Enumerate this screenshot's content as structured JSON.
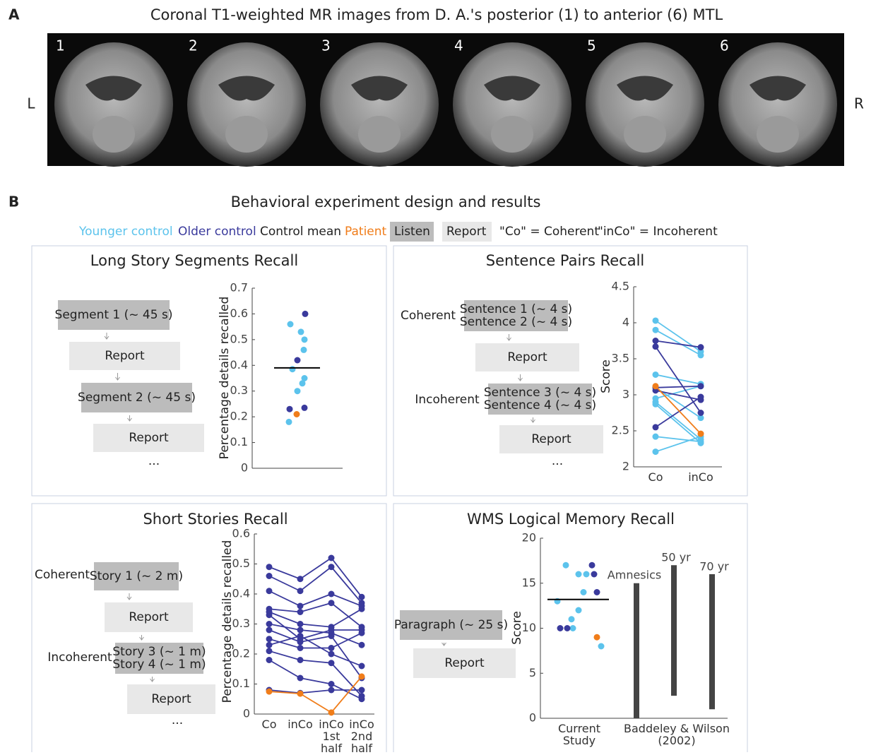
{
  "panel_a": {
    "label": "A",
    "title": "Coronal T1-weighted MR images from D. A.'s posterior (1) to anterior (6) MTL",
    "slices": [
      "1",
      "2",
      "3",
      "4",
      "5",
      "6"
    ],
    "left": "L",
    "right": "R"
  },
  "panel_b": {
    "label": "B",
    "title": "Behavioral experiment design and results",
    "legend": [
      {
        "text": "Younger control",
        "color": "#5cc3ec"
      },
      {
        "text": "Older control",
        "color": "#3a3a9c"
      },
      {
        "text": "Control mean",
        "color": "#222222"
      },
      {
        "text": "Patient",
        "color": "#f07d1a"
      },
      {
        "text": "Listen",
        "color": "#222222",
        "fill": "#bcbcbc"
      },
      {
        "text": "Report",
        "color": "#222222",
        "fill": "#e8e8e8"
      },
      {
        "text": "\"Co\" = Coherent",
        "color": "#222222"
      },
      {
        "text": "\"inCo\" = Incoherent",
        "color": "#222222"
      }
    ]
  },
  "designs": [
    {
      "steps": [
        {
          "type": "listen",
          "lines": [
            "Segment 1 (~ 45 s)"
          ]
        },
        {
          "type": "report",
          "lines": [
            "Report"
          ]
        },
        {
          "type": "listen",
          "lines": [
            "Segment 2 (~ 45 s)"
          ]
        },
        {
          "type": "report",
          "lines": [
            "Report"
          ]
        }
      ],
      "more": "..."
    },
    {
      "steps": [
        {
          "type": "listen",
          "label": "Coherent",
          "lines": [
            "Sentence 1 (~ 4 s)",
            "Sentence 2 (~ 4 s)"
          ]
        },
        {
          "type": "report",
          "lines": [
            "Report"
          ]
        },
        {
          "type": "listen",
          "label": "Incoherent",
          "lines": [
            "Sentence 3 (~ 4 s)",
            "Sentence 4 (~ 4 s)"
          ]
        },
        {
          "type": "report",
          "lines": [
            "Report"
          ]
        }
      ],
      "more": "..."
    },
    {
      "steps": [
        {
          "type": "listen",
          "label": "Coherent",
          "lines": [
            "Story 1 (~ 2 m)"
          ]
        },
        {
          "type": "report",
          "lines": [
            "Report"
          ]
        },
        {
          "type": "listen",
          "label": "Incoherent",
          "lines": [
            "Story 3 (~ 1 m)",
            "Story 4 (~ 1 m)"
          ]
        },
        {
          "type": "report",
          "lines": [
            "Report"
          ]
        }
      ],
      "more": "..."
    },
    {
      "steps": [
        {
          "type": "listen",
          "lines": [
            "Paragraph (~ 25 s)"
          ]
        },
        {
          "type": "report",
          "lines": [
            "Report"
          ]
        }
      ]
    }
  ],
  "chart_data": [
    {
      "type": "strip",
      "title": "Long Story Segments Recall",
      "y_label": "Percentage details recalled",
      "ylim": [
        0,
        0.7
      ],
      "yticks": [
        0,
        0.1,
        0.2,
        0.3,
        0.4,
        0.5,
        0.6,
        0.7
      ],
      "series": [
        {
          "color": "#5cc3ec",
          "values": [
            0.56,
            0.53,
            0.5,
            0.46,
            0.385,
            0.35,
            0.33,
            0.3,
            0.18
          ]
        },
        {
          "color": "#3a3a9c",
          "values": [
            0.6,
            0.42,
            0.23,
            0.235
          ]
        },
        {
          "color": "#f07d1a",
          "values": [
            0.21
          ]
        }
      ],
      "mean": 0.39,
      "mean_color": "#000000"
    },
    {
      "type": "paired",
      "title": "Sentence Pairs Recall",
      "y_label": "Score",
      "categories": [
        "Co",
        "inCo"
      ],
      "ylim": [
        2,
        4.5
      ],
      "yticks": [
        2,
        2.5,
        3,
        3.5,
        4,
        4.5
      ],
      "series": [
        {
          "color": "#5cc3ec",
          "values": [
            4.03,
            3.6
          ]
        },
        {
          "color": "#5cc3ec",
          "values": [
            3.9,
            3.55
          ]
        },
        {
          "color": "#5cc3ec",
          "values": [
            3.28,
            3.15
          ]
        },
        {
          "color": "#5cc3ec",
          "values": [
            3.1,
            2.68
          ]
        },
        {
          "color": "#5cc3ec",
          "values": [
            2.95,
            3.12
          ]
        },
        {
          "color": "#5cc3ec",
          "values": [
            2.9,
            2.38
          ]
        },
        {
          "color": "#5cc3ec",
          "values": [
            2.87,
            2.33
          ]
        },
        {
          "color": "#5cc3ec",
          "values": [
            2.42,
            2.35
          ]
        },
        {
          "color": "#5cc3ec",
          "values": [
            2.21,
            2.42
          ]
        },
        {
          "color": "#3a3a9c",
          "values": [
            3.75,
            3.66
          ]
        },
        {
          "color": "#3a3a9c",
          "values": [
            3.67,
            2.75
          ]
        },
        {
          "color": "#3a3a9c",
          "values": [
            3.1,
            3.12
          ]
        },
        {
          "color": "#3a3a9c",
          "values": [
            2.55,
            2.97
          ]
        },
        {
          "color": "#3a3a9c",
          "values": [
            3.06,
            2.93
          ]
        },
        {
          "color": "#f07d1a",
          "values": [
            3.12,
            2.46
          ]
        }
      ]
    },
    {
      "type": "paired",
      "title": "Short Stories Recall",
      "y_label": "Percentage details recalled",
      "categories": [
        "Co",
        "inCo",
        "inCo 1st half",
        "inCo 2nd half"
      ],
      "ylim": [
        0,
        0.6
      ],
      "yticks": [
        0,
        0.1,
        0.2,
        0.3,
        0.4,
        0.5,
        0.6
      ],
      "series": [
        {
          "color": "#3a3a9c",
          "values": [
            0.49,
            0.45,
            0.52,
            0.39
          ]
        },
        {
          "color": "#3a3a9c",
          "values": [
            0.46,
            0.41,
            0.49,
            0.37
          ]
        },
        {
          "color": "#3a3a9c",
          "values": [
            0.41,
            0.36,
            0.4,
            0.36
          ]
        },
        {
          "color": "#3a3a9c",
          "values": [
            0.35,
            0.34,
            0.37,
            0.29
          ]
        },
        {
          "color": "#3a3a9c",
          "values": [
            0.34,
            0.3,
            0.29,
            0.35
          ]
        },
        {
          "color": "#3a3a9c",
          "values": [
            0.33,
            0.25,
            0.28,
            0.28
          ]
        },
        {
          "color": "#3a3a9c",
          "values": [
            0.3,
            0.28,
            0.27,
            0.23
          ]
        },
        {
          "color": "#3a3a9c",
          "values": [
            0.28,
            0.24,
            0.26,
            0.12
          ]
        },
        {
          "color": "#3a3a9c",
          "values": [
            0.25,
            0.22,
            0.22,
            0.27
          ]
        },
        {
          "color": "#3a3a9c",
          "values": [
            0.23,
            0.26,
            0.2,
            0.16
          ]
        },
        {
          "color": "#3a3a9c",
          "values": [
            0.21,
            0.18,
            0.17,
            0.06
          ]
        },
        {
          "color": "#3a3a9c",
          "values": [
            0.18,
            0.12,
            0.1,
            0.05
          ]
        },
        {
          "color": "#3a3a9c",
          "values": [
            0.08,
            0.07,
            0.08,
            0.08
          ]
        },
        {
          "color": "#f07d1a",
          "values": [
            0.075,
            0.068,
            0.005,
            0.125
          ]
        }
      ]
    },
    {
      "type": "strip",
      "title": "WMS Logical Memory Recall",
      "y_label": "Score",
      "categories": [
        "Current Study",
        "Baddeley & Wilson (2002)"
      ],
      "ylim": [
        0,
        20
      ],
      "yticks": [
        0,
        5,
        10,
        15,
        20
      ],
      "series": [
        {
          "color": "#5cc3ec",
          "values": [
            17,
            16,
            16,
            14,
            13,
            12,
            11,
            10,
            8
          ]
        },
        {
          "color": "#3a3a9c",
          "values": [
            17,
            16,
            14,
            10,
            10
          ]
        },
        {
          "color": "#f07d1a",
          "values": [
            9
          ]
        }
      ],
      "mean": 13.2,
      "mean_color": "#000000",
      "ranges": [
        {
          "label": "Amnesics",
          "low": 0,
          "high": 15
        },
        {
          "label": "50 yr",
          "low": 2.5,
          "high": 17
        },
        {
          "label": "70 yr",
          "low": 1,
          "high": 16
        }
      ],
      "range_color": "#444444"
    }
  ]
}
